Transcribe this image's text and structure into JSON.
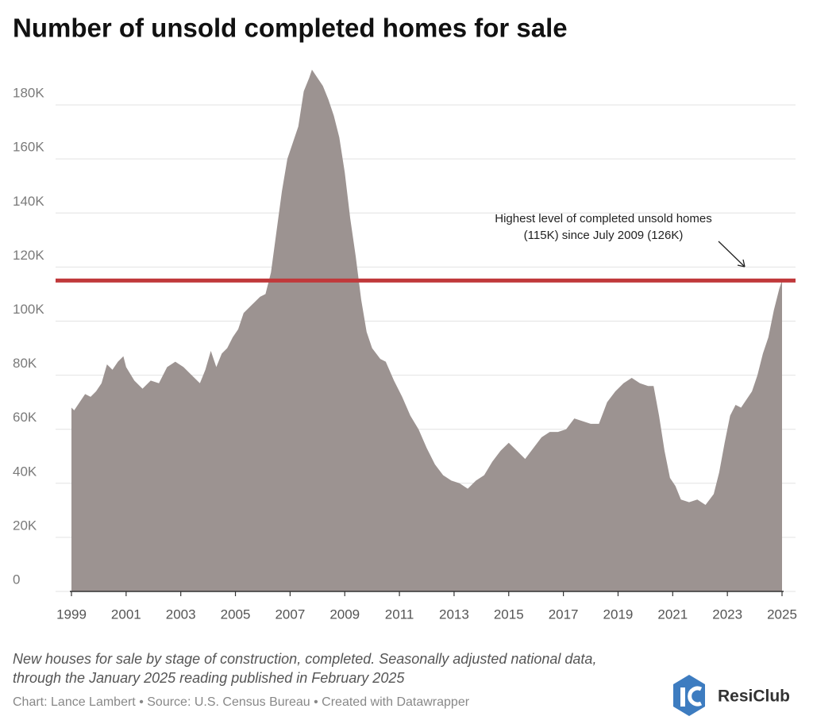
{
  "chart_data": {
    "type": "area",
    "title": "Number of unsold completed homes for sale",
    "x": [
      1999.0,
      1999.1,
      1999.3,
      1999.5,
      1999.7,
      1999.9,
      2000.1,
      2000.3,
      2000.5,
      2000.7,
      2000.9,
      2001.0,
      2001.3,
      2001.6,
      2001.9,
      2002.2,
      2002.5,
      2002.8,
      2003.1,
      2003.4,
      2003.7,
      2003.9,
      2004.1,
      2004.3,
      2004.5,
      2004.7,
      2004.9,
      2005.1,
      2005.3,
      2005.6,
      2005.9,
      2006.1,
      2006.3,
      2006.5,
      2006.7,
      2006.9,
      2007.1,
      2007.3,
      2007.5,
      2007.7,
      2007.8,
      2008.0,
      2008.2,
      2008.4,
      2008.6,
      2008.8,
      2009.0,
      2009.2,
      2009.4,
      2009.6,
      2009.8,
      2010.0,
      2010.3,
      2010.5,
      2010.8,
      2011.1,
      2011.4,
      2011.7,
      2012.0,
      2012.3,
      2012.6,
      2012.9,
      2013.2,
      2013.5,
      2013.8,
      2014.1,
      2014.4,
      2014.7,
      2015.0,
      2015.3,
      2015.6,
      2015.9,
      2016.2,
      2016.5,
      2016.8,
      2017.1,
      2017.4,
      2017.7,
      2018.0,
      2018.3,
      2018.6,
      2018.9,
      2019.2,
      2019.5,
      2019.8,
      2020.1,
      2020.3,
      2020.5,
      2020.7,
      2020.9,
      2021.1,
      2021.3,
      2021.6,
      2021.9,
      2022.2,
      2022.5,
      2022.7,
      2022.9,
      2023.1,
      2023.3,
      2023.5,
      2023.7,
      2023.9,
      2024.1,
      2024.3,
      2024.5,
      2024.7,
      2024.9,
      2025.0
    ],
    "values": [
      68000,
      67000,
      70000,
      73000,
      72000,
      74000,
      77000,
      84000,
      82000,
      85000,
      87000,
      83000,
      78000,
      75000,
      78000,
      77000,
      83000,
      85000,
      83000,
      80000,
      77000,
      82000,
      89000,
      83000,
      88000,
      90000,
      94000,
      97000,
      103000,
      106000,
      109000,
      110000,
      118000,
      133000,
      148000,
      160000,
      166000,
      172000,
      185000,
      190000,
      193000,
      190000,
      187000,
      182000,
      176000,
      168000,
      155000,
      138000,
      124000,
      108000,
      96000,
      90000,
      86000,
      85000,
      78000,
      72000,
      65000,
      60000,
      53000,
      47000,
      43000,
      41000,
      40000,
      38000,
      41000,
      43000,
      48000,
      52000,
      55000,
      52000,
      49000,
      53000,
      57000,
      59000,
      59000,
      60000,
      64000,
      63000,
      62000,
      62000,
      70000,
      74000,
      77000,
      79000,
      77000,
      76000,
      76000,
      65000,
      52000,
      42000,
      39000,
      34000,
      33000,
      34000,
      32000,
      36000,
      44000,
      55000,
      65000,
      69000,
      68000,
      71000,
      74000,
      80000,
      88000,
      94000,
      104000,
      112000,
      115000
    ],
    "color": "#9c9391",
    "xlim": [
      1999,
      2025
    ],
    "xticks": [
      1999,
      2001,
      2003,
      2005,
      2007,
      2009,
      2011,
      2013,
      2015,
      2017,
      2019,
      2021,
      2023,
      2025
    ],
    "ylim": [
      0,
      195000
    ],
    "yticks": [
      0,
      {
        "value": 20000,
        "label": "20K"
      },
      {
        "value": 40000,
        "label": "40K"
      },
      {
        "value": 60000,
        "label": "60K"
      },
      {
        "value": 80000,
        "label": "80K"
      },
      {
        "value": 100000,
        "label": "100K"
      },
      {
        "value": 120000,
        "label": "120K"
      },
      {
        "value": 140000,
        "label": "140K"
      },
      {
        "value": 160000,
        "label": "160K"
      },
      {
        "value": 180000,
        "label": "180K"
      }
    ],
    "grid": true,
    "reference_line": {
      "value": 115000,
      "color": "#c0393b"
    },
    "annotation": [
      "Highest level of completed unsold homes",
      "(115K) since July 2009 (126K)"
    ],
    "notes": [
      "New houses for sale by stage of construction, completed. Seasonally adjusted national data,",
      "through the January 2025 reading published in February 2025"
    ],
    "credit": "Chart: Lance Lambert • Source: U.S. Census Bureau • Created with Datawrapper",
    "logo": "ResiClub"
  }
}
